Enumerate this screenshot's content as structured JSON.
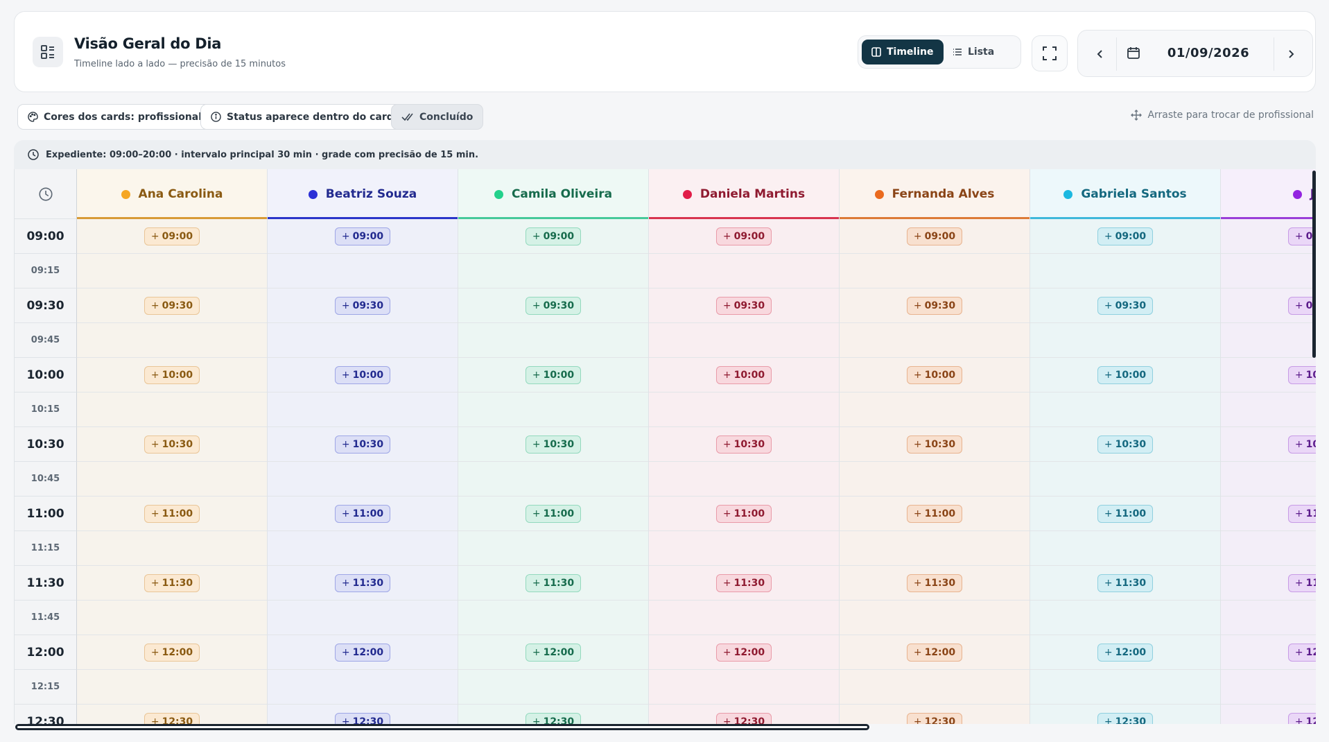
{
  "header": {
    "title": "Visão Geral do Dia",
    "subtitle": "Timeline lado a lado — precisão de 15 minutos",
    "view_timeline": "Timeline",
    "view_list": "Lista",
    "date": "01/09/2026"
  },
  "chips": {
    "card_colors": "Cores dos cards: profissional",
    "status_inside": "Status aparece dentro do card",
    "done": "Concluído",
    "drag_hint": "Arraste para trocar de profissional"
  },
  "info": {
    "text": "Expediente: 09:00–20:00 · intervalo principal 30 min · grade com precisão de 15 min."
  },
  "times": [
    "09:00",
    "09:15",
    "09:30",
    "09:45",
    "10:00",
    "10:15",
    "10:30",
    "10:45",
    "11:00",
    "11:15",
    "11:30",
    "11:45",
    "12:00",
    "12:15",
    "12:30"
  ],
  "professionals": [
    {
      "name": "Ana Carolina",
      "dot": "#f5a623",
      "line": "#d89b36",
      "text": "#8a5a12",
      "headbg": "#fbf6ec",
      "bodybg": "#f7f3ec",
      "btnbg": "#fbe9d2",
      "btnborder": "#e9c597"
    },
    {
      "name": "Beatriz Souza",
      "dot": "#2b2fd6",
      "line": "#2b35c9",
      "text": "#222a8f",
      "headbg": "#f1f2fb",
      "bodybg": "#eef0f9",
      "btnbg": "#dcdff6",
      "btnborder": "#9ea6e6"
    },
    {
      "name": "Camila Oliveira",
      "dot": "#23d18b",
      "line": "#46c99a",
      "text": "#166b4c",
      "headbg": "#eef9f5",
      "bodybg": "#ecf6f3",
      "btnbg": "#d5f1e6",
      "btnborder": "#92d9bd"
    },
    {
      "name": "Daniela Martins",
      "dot": "#e11d48",
      "line": "#d8334f",
      "text": "#8f1a30",
      "headbg": "#fbf0f2",
      "bodybg": "#f9eef1",
      "btnbg": "#f8d8de",
      "btnborder": "#e99aa8"
    },
    {
      "name": "Fernanda Alves",
      "dot": "#ea6a1e",
      "line": "#dd7a36",
      "text": "#8a4416",
      "headbg": "#fbf3ed",
      "bodybg": "#f8f1ec",
      "btnbg": "#f8e0cf",
      "btnborder": "#e8b38f"
    },
    {
      "name": "Gabriela Santos",
      "dot": "#1cb8e0",
      "line": "#3fb8db",
      "text": "#14687f",
      "headbg": "#edf8fb",
      "bodybg": "#ebf5f6",
      "btnbg": "#d2eef4",
      "btnborder": "#8fd0df"
    },
    {
      "name": "Julia",
      "dot": "#9324e0",
      "line": "#9a3ed8",
      "text": "#5a1a8a",
      "headbg": "#f6effb",
      "bodybg": "#f3eef8",
      "btnbg": "#ead7f7",
      "btnborder": "#c79be6"
    }
  ]
}
